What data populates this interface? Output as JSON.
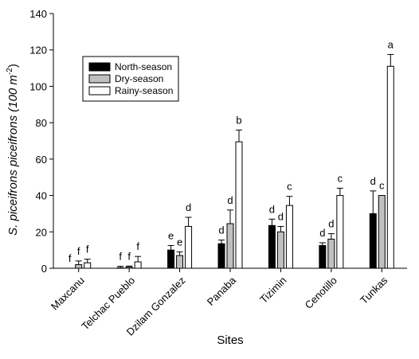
{
  "chart_data": {
    "type": "bar",
    "xlabel": "Sites",
    "ylabel": "S. piceifrons piceifrons (100 m",
    "ylabel_superscript": "-2",
    "ylabel_close": ")",
    "ylim": [
      0,
      140
    ],
    "yticks": [
      0,
      20,
      40,
      60,
      80,
      100,
      120,
      140
    ],
    "categories": [
      "Maxcanu",
      "Telchac Pueblo",
      "Dzilam Gonzalez",
      "Panaba",
      "Tizimin",
      "Cenotillo",
      "Tunkas"
    ],
    "series": [
      {
        "name": "North-season",
        "color": "#000000",
        "values": [
          0,
          0.3,
          10,
          13.5,
          23.5,
          12.5,
          30
        ],
        "errors": [
          0,
          0.8,
          2.5,
          2,
          3.5,
          1.5,
          12.5
        ],
        "letters": [
          "f",
          "f",
          "e",
          "d",
          "d",
          "d",
          "d"
        ]
      },
      {
        "name": "Dry-season",
        "color": "#c0c0c0",
        "values": [
          2,
          0.7,
          7,
          24.5,
          20,
          16,
          40
        ],
        "errors": [
          2,
          0.5,
          2,
          7.5,
          3,
          3,
          0
        ],
        "letters": [
          "f",
          "f",
          "e",
          "d",
          "d",
          "d",
          "c"
        ]
      },
      {
        "name": "Rainy-season",
        "color": "#ffffff",
        "values": [
          3,
          3.5,
          23,
          69.5,
          34.5,
          40,
          111
        ],
        "errors": [
          2,
          3,
          5,
          6.5,
          5,
          4,
          6.5
        ],
        "letters": [
          "f",
          "f",
          "d",
          "b",
          "c",
          "c",
          "a"
        ]
      }
    ],
    "legend_position": "top-left",
    "grid": false
  }
}
